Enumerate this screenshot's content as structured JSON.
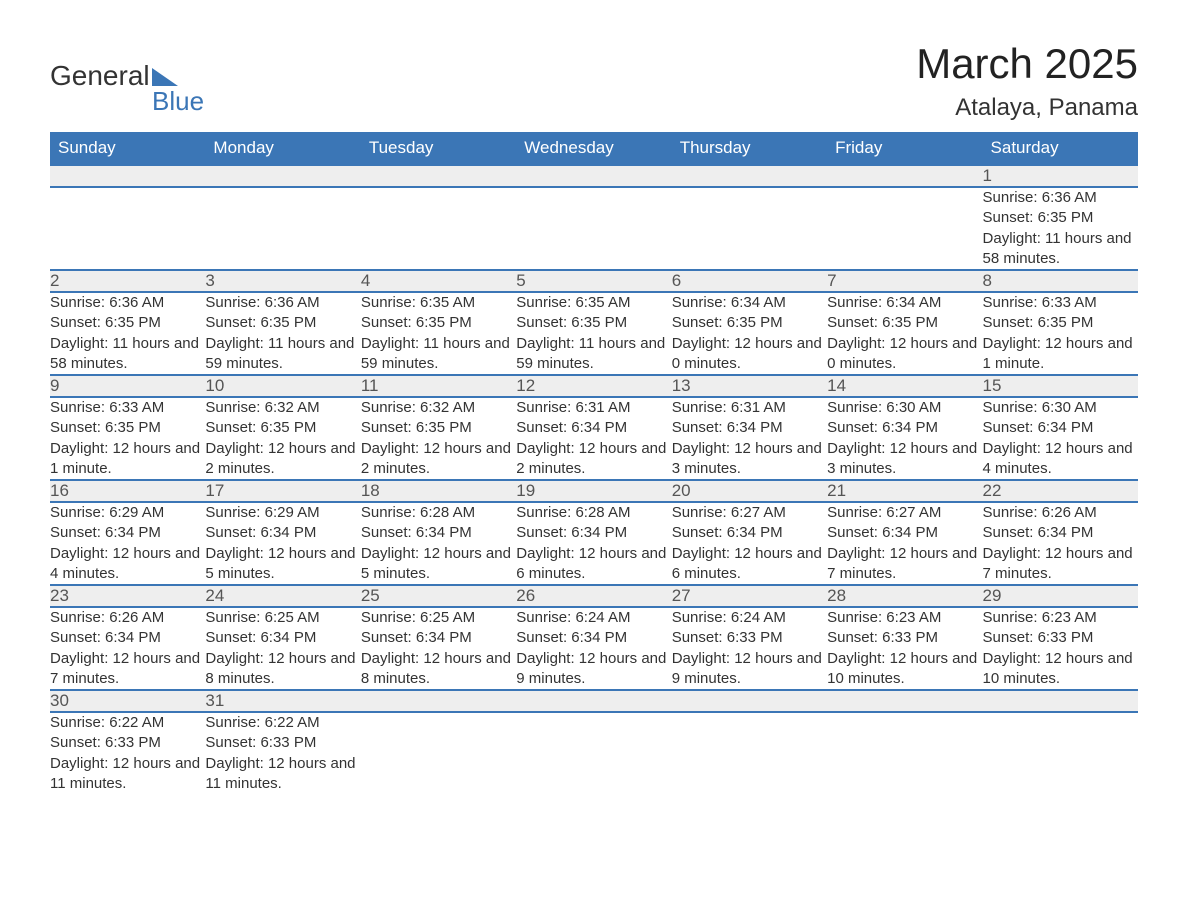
{
  "brand": {
    "name1": "General",
    "name2": "Blue",
    "accent": "#3b76b6"
  },
  "title": "March 2025",
  "location": "Atalaya, Panama",
  "colors": {
    "header_bg": "#3b76b6",
    "header_text": "#ffffff",
    "daynum_bg": "#eeeeee",
    "row_border": "#3b76b6",
    "body_text": "#333333"
  },
  "fonts": {
    "title_size_pt": 32,
    "header_size_pt": 13,
    "cell_size_pt": 11
  },
  "day_labels": [
    "Sunday",
    "Monday",
    "Tuesday",
    "Wednesday",
    "Thursday",
    "Friday",
    "Saturday"
  ],
  "weeks": [
    [
      null,
      null,
      null,
      null,
      null,
      null,
      {
        "n": "1",
        "sunrise": "Sunrise: 6:36 AM",
        "sunset": "Sunset: 6:35 PM",
        "daylight": "Daylight: 11 hours and 58 minutes."
      }
    ],
    [
      {
        "n": "2",
        "sunrise": "Sunrise: 6:36 AM",
        "sunset": "Sunset: 6:35 PM",
        "daylight": "Daylight: 11 hours and 58 minutes."
      },
      {
        "n": "3",
        "sunrise": "Sunrise: 6:36 AM",
        "sunset": "Sunset: 6:35 PM",
        "daylight": "Daylight: 11 hours and 59 minutes."
      },
      {
        "n": "4",
        "sunrise": "Sunrise: 6:35 AM",
        "sunset": "Sunset: 6:35 PM",
        "daylight": "Daylight: 11 hours and 59 minutes."
      },
      {
        "n": "5",
        "sunrise": "Sunrise: 6:35 AM",
        "sunset": "Sunset: 6:35 PM",
        "daylight": "Daylight: 11 hours and 59 minutes."
      },
      {
        "n": "6",
        "sunrise": "Sunrise: 6:34 AM",
        "sunset": "Sunset: 6:35 PM",
        "daylight": "Daylight: 12 hours and 0 minutes."
      },
      {
        "n": "7",
        "sunrise": "Sunrise: 6:34 AM",
        "sunset": "Sunset: 6:35 PM",
        "daylight": "Daylight: 12 hours and 0 minutes."
      },
      {
        "n": "8",
        "sunrise": "Sunrise: 6:33 AM",
        "sunset": "Sunset: 6:35 PM",
        "daylight": "Daylight: 12 hours and 1 minute."
      }
    ],
    [
      {
        "n": "9",
        "sunrise": "Sunrise: 6:33 AM",
        "sunset": "Sunset: 6:35 PM",
        "daylight": "Daylight: 12 hours and 1 minute."
      },
      {
        "n": "10",
        "sunrise": "Sunrise: 6:32 AM",
        "sunset": "Sunset: 6:35 PM",
        "daylight": "Daylight: 12 hours and 2 minutes."
      },
      {
        "n": "11",
        "sunrise": "Sunrise: 6:32 AM",
        "sunset": "Sunset: 6:35 PM",
        "daylight": "Daylight: 12 hours and 2 minutes."
      },
      {
        "n": "12",
        "sunrise": "Sunrise: 6:31 AM",
        "sunset": "Sunset: 6:34 PM",
        "daylight": "Daylight: 12 hours and 2 minutes."
      },
      {
        "n": "13",
        "sunrise": "Sunrise: 6:31 AM",
        "sunset": "Sunset: 6:34 PM",
        "daylight": "Daylight: 12 hours and 3 minutes."
      },
      {
        "n": "14",
        "sunrise": "Sunrise: 6:30 AM",
        "sunset": "Sunset: 6:34 PM",
        "daylight": "Daylight: 12 hours and 3 minutes."
      },
      {
        "n": "15",
        "sunrise": "Sunrise: 6:30 AM",
        "sunset": "Sunset: 6:34 PM",
        "daylight": "Daylight: 12 hours and 4 minutes."
      }
    ],
    [
      {
        "n": "16",
        "sunrise": "Sunrise: 6:29 AM",
        "sunset": "Sunset: 6:34 PM",
        "daylight": "Daylight: 12 hours and 4 minutes."
      },
      {
        "n": "17",
        "sunrise": "Sunrise: 6:29 AM",
        "sunset": "Sunset: 6:34 PM",
        "daylight": "Daylight: 12 hours and 5 minutes."
      },
      {
        "n": "18",
        "sunrise": "Sunrise: 6:28 AM",
        "sunset": "Sunset: 6:34 PM",
        "daylight": "Daylight: 12 hours and 5 minutes."
      },
      {
        "n": "19",
        "sunrise": "Sunrise: 6:28 AM",
        "sunset": "Sunset: 6:34 PM",
        "daylight": "Daylight: 12 hours and 6 minutes."
      },
      {
        "n": "20",
        "sunrise": "Sunrise: 6:27 AM",
        "sunset": "Sunset: 6:34 PM",
        "daylight": "Daylight: 12 hours and 6 minutes."
      },
      {
        "n": "21",
        "sunrise": "Sunrise: 6:27 AM",
        "sunset": "Sunset: 6:34 PM",
        "daylight": "Daylight: 12 hours and 7 minutes."
      },
      {
        "n": "22",
        "sunrise": "Sunrise: 6:26 AM",
        "sunset": "Sunset: 6:34 PM",
        "daylight": "Daylight: 12 hours and 7 minutes."
      }
    ],
    [
      {
        "n": "23",
        "sunrise": "Sunrise: 6:26 AM",
        "sunset": "Sunset: 6:34 PM",
        "daylight": "Daylight: 12 hours and 7 minutes."
      },
      {
        "n": "24",
        "sunrise": "Sunrise: 6:25 AM",
        "sunset": "Sunset: 6:34 PM",
        "daylight": "Daylight: 12 hours and 8 minutes."
      },
      {
        "n": "25",
        "sunrise": "Sunrise: 6:25 AM",
        "sunset": "Sunset: 6:34 PM",
        "daylight": "Daylight: 12 hours and 8 minutes."
      },
      {
        "n": "26",
        "sunrise": "Sunrise: 6:24 AM",
        "sunset": "Sunset: 6:34 PM",
        "daylight": "Daylight: 12 hours and 9 minutes."
      },
      {
        "n": "27",
        "sunrise": "Sunrise: 6:24 AM",
        "sunset": "Sunset: 6:33 PM",
        "daylight": "Daylight: 12 hours and 9 minutes."
      },
      {
        "n": "28",
        "sunrise": "Sunrise: 6:23 AM",
        "sunset": "Sunset: 6:33 PM",
        "daylight": "Daylight: 12 hours and 10 minutes."
      },
      {
        "n": "29",
        "sunrise": "Sunrise: 6:23 AM",
        "sunset": "Sunset: 6:33 PM",
        "daylight": "Daylight: 12 hours and 10 minutes."
      }
    ],
    [
      {
        "n": "30",
        "sunrise": "Sunrise: 6:22 AM",
        "sunset": "Sunset: 6:33 PM",
        "daylight": "Daylight: 12 hours and 11 minutes."
      },
      {
        "n": "31",
        "sunrise": "Sunrise: 6:22 AM",
        "sunset": "Sunset: 6:33 PM",
        "daylight": "Daylight: 12 hours and 11 minutes."
      },
      null,
      null,
      null,
      null,
      null
    ]
  ]
}
